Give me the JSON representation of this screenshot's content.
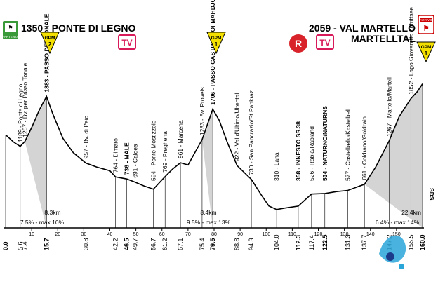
{
  "start": {
    "altitude": "1350",
    "name": "PONTE DI LEGNO",
    "badge": "PARTENZA"
  },
  "finish": {
    "altitude": "2059",
    "name_line1": "VAL MARTELLO",
    "name_line2": "MARTELLTAL",
    "badge": "ARRIVO"
  },
  "side_label": "SDS",
  "markers": {
    "gpm1": {
      "label": "GPM",
      "cat": "2"
    },
    "gpm2": {
      "label": "GPM",
      "cat": "1"
    },
    "gpm3": {
      "label": "GPM",
      "cat": "1"
    },
    "tv1": "TV",
    "tv2": "TV",
    "r": "R"
  },
  "climbs": [
    {
      "length": "8.3km",
      "grade": "7.5% - max 10%"
    },
    {
      "length": "8.4km",
      "grade": "9.5% - max 13%"
    },
    {
      "length": "22.4km",
      "grade": "6.4% - max 14%"
    }
  ],
  "chart_data": {
    "type": "area",
    "title": "",
    "xlabel": "km",
    "ylabel": "altitude (m)",
    "xlim": [
      0,
      160
    ],
    "x_ticks": [
      10,
      20,
      30,
      40,
      50,
      60,
      70,
      80,
      90,
      100,
      110,
      120,
      130,
      140,
      150
    ],
    "profile": [
      [
        0,
        1350
      ],
      [
        3,
        1250
      ],
      [
        5.6,
        1189
      ],
      [
        7.4,
        1257
      ],
      [
        10,
        1450
      ],
      [
        13,
        1700
      ],
      [
        15.7,
        1883
      ],
      [
        18,
        1650
      ],
      [
        22,
        1300
      ],
      [
        26,
        1100
      ],
      [
        30.8,
        957
      ],
      [
        35,
        900
      ],
      [
        40,
        850
      ],
      [
        42.2,
        764
      ],
      [
        46.5,
        736
      ],
      [
        49.7,
        691
      ],
      [
        53,
        640
      ],
      [
        56.7,
        594
      ],
      [
        61.2,
        769
      ],
      [
        64,
        870
      ],
      [
        67.1,
        961
      ],
      [
        70,
        930
      ],
      [
        75.4,
        1283
      ],
      [
        79.5,
        1706
      ],
      [
        82,
        1550
      ],
      [
        85,
        1250
      ],
      [
        88.8,
        922
      ],
      [
        94.3,
        730
      ],
      [
        98,
        520
      ],
      [
        101,
        360
      ],
      [
        104.0,
        310
      ],
      [
        107,
        330
      ],
      [
        112.3,
        358
      ],
      [
        117.4,
        526
      ],
      [
        122.5,
        534
      ],
      [
        127,
        560
      ],
      [
        131.3,
        577
      ],
      [
        137.7,
        661
      ],
      [
        142,
        900
      ],
      [
        147.2,
        1267
      ],
      [
        151,
        1600
      ],
      [
        155.5,
        1852
      ],
      [
        158,
        1950
      ],
      [
        160.0,
        2059
      ]
    ],
    "waypoints": [
      {
        "km": "0.0",
        "alt": "",
        "name": "",
        "bold": true
      },
      {
        "km": "5.6",
        "alt": "1189",
        "name": "Ponte di Legno",
        "bold": false
      },
      {
        "km": "7.4",
        "alt": "1257",
        "name": "Bv. per Passo Tonale",
        "bold": false
      },
      {
        "km": "15.7",
        "alt": "1883",
        "name": "PASSO DEL TONALE",
        "bold": true
      },
      {
        "km": "30.8",
        "alt": "957",
        "name": "Bv. di Peio",
        "bold": false
      },
      {
        "km": "42.2",
        "alt": "764",
        "name": "Dimaro",
        "bold": false
      },
      {
        "km": "46.5",
        "alt": "736",
        "name": "MALÈ",
        "bold": true
      },
      {
        "km": "49.7",
        "alt": "691",
        "name": "Caldes",
        "bold": false
      },
      {
        "km": "56.7",
        "alt": "594",
        "name": "Ponte Mostizzolo",
        "bold": false
      },
      {
        "km": "61.2",
        "alt": "769",
        "name": "Preghena",
        "bold": false
      },
      {
        "km": "67.1",
        "alt": "961",
        "name": "Marcena",
        "bold": false
      },
      {
        "km": "75.4",
        "alt": "1283",
        "name": "Bv. Proveis",
        "bold": false
      },
      {
        "km": "79.5",
        "alt": "1706",
        "name": "PASSO CASTRIN HOFMAHDJOCH",
        "bold": true
      },
      {
        "km": "88.8",
        "alt": "922",
        "name": "Val d'Ultimo/Ultental",
        "bold": false
      },
      {
        "km": "94.3",
        "alt": "730",
        "name": "San Pancrazio/St.Pankraz",
        "bold": false
      },
      {
        "km": "104.0",
        "alt": "310",
        "name": "Lana",
        "bold": false
      },
      {
        "km": "112.3",
        "alt": "358",
        "name": "INNESTO SS.38",
        "bold": true
      },
      {
        "km": "117.4",
        "alt": "526",
        "name": "Rablà/Rabland",
        "bold": false
      },
      {
        "km": "122.5",
        "alt": "534",
        "name": "NATURNO/NATURNS",
        "bold": true
      },
      {
        "km": "131.3",
        "alt": "577",
        "name": "Castelbello/Kastelbell",
        "bold": false
      },
      {
        "km": "137.7",
        "alt": "661",
        "name": "Coldrano/Goldrain",
        "bold": false
      },
      {
        "km": "147.2",
        "alt": "1267",
        "name": "Martello/Martell",
        "bold": false
      },
      {
        "km": "155.5",
        "alt": "1852",
        "name": "Lago Gioveretto Zufrittsee",
        "bold": false
      },
      {
        "km": "160.0",
        "alt": "",
        "name": "",
        "bold": true
      }
    ],
    "shaded_climbs": [
      [
        7.4,
        15.7
      ],
      [
        75.4,
        79.5
      ],
      [
        137.7,
        160.0
      ]
    ]
  }
}
